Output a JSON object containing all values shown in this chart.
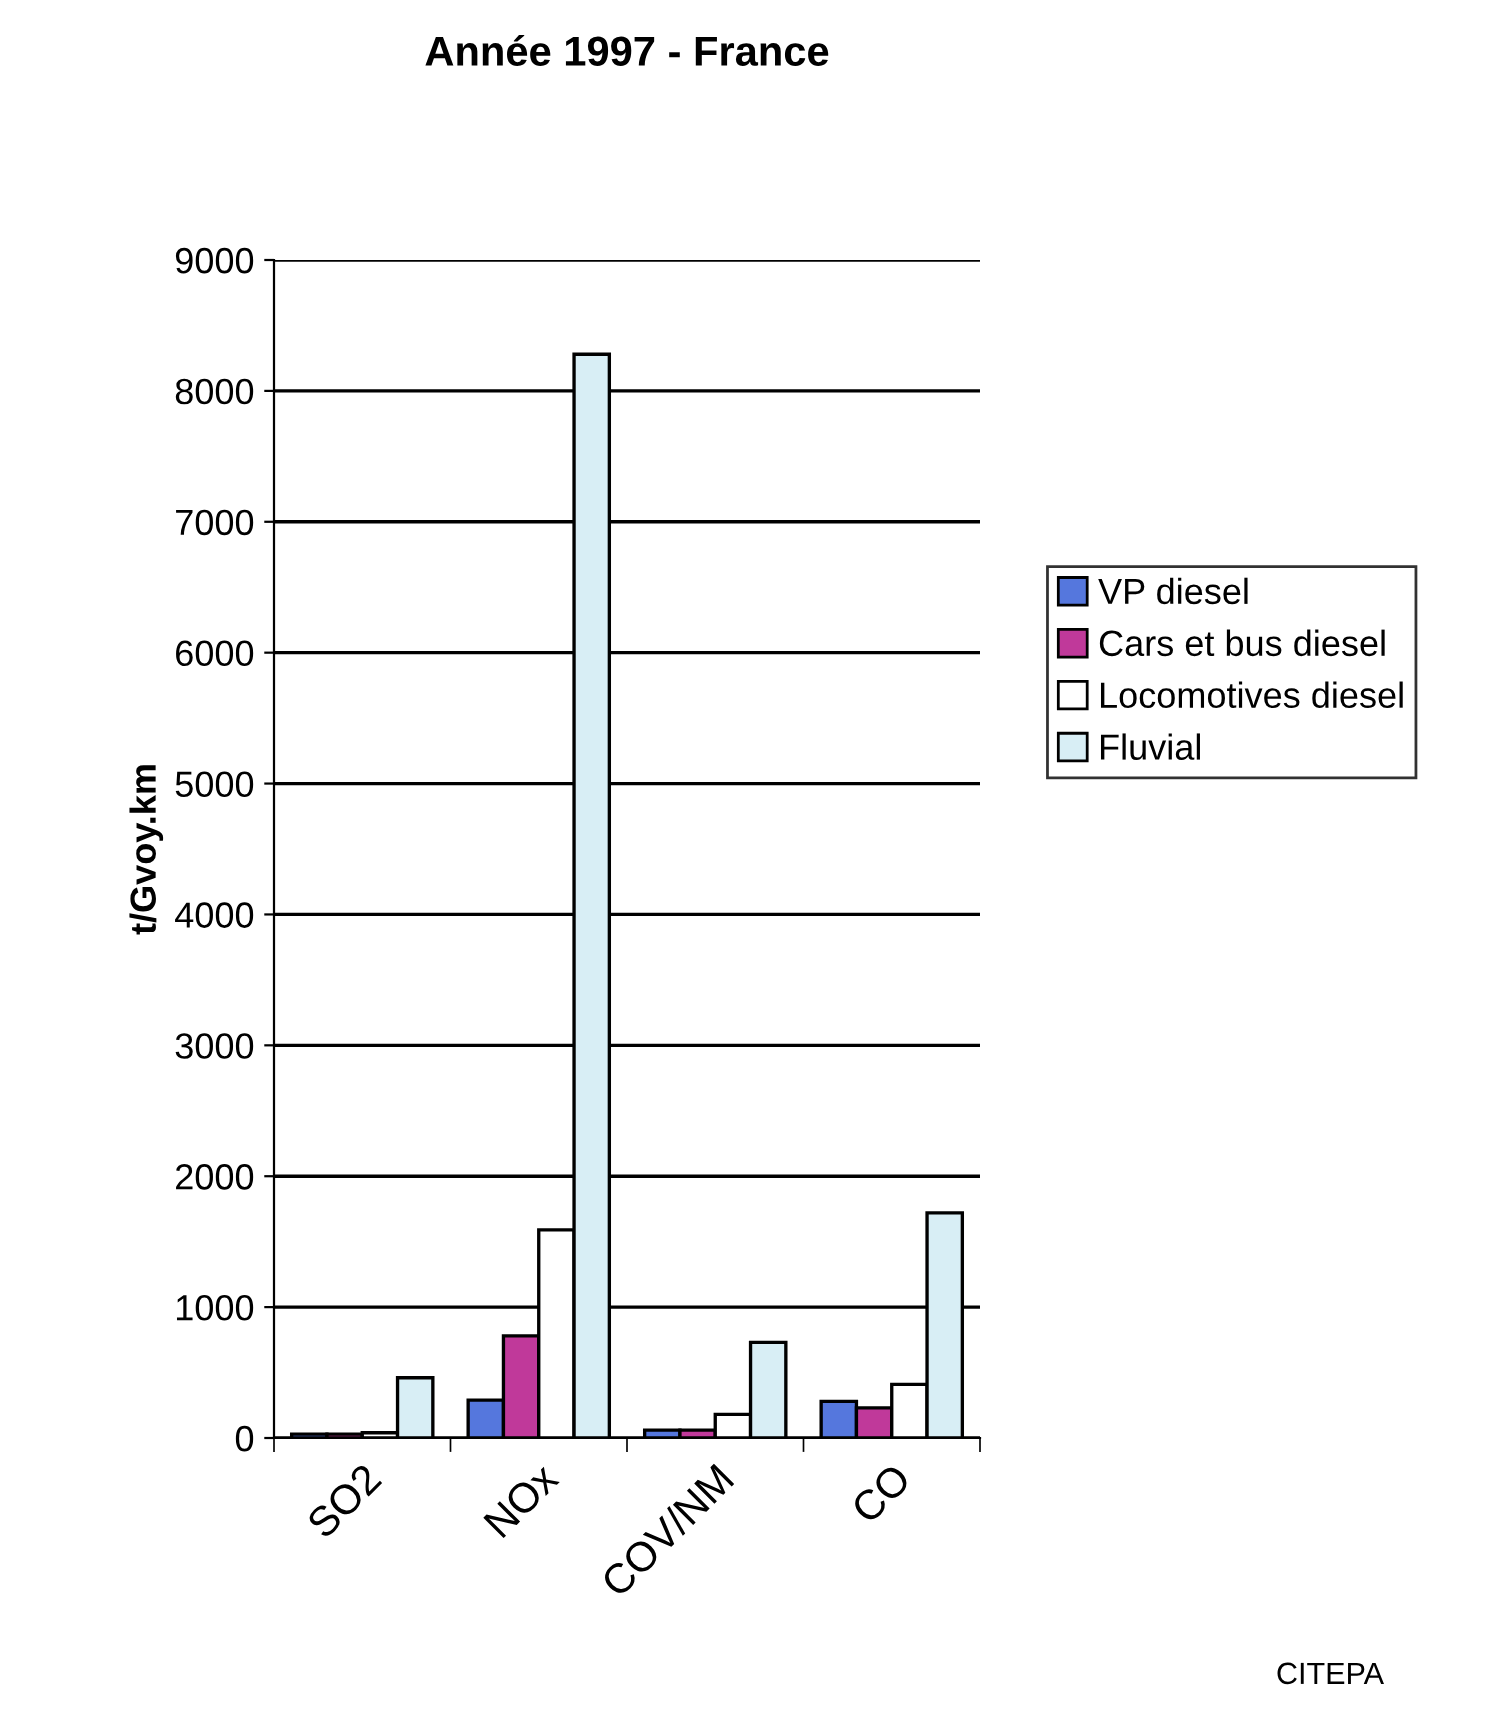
{
  "chart_data": {
    "type": "bar",
    "title": "Année 1997 - France",
    "ylabel": "t/Gvoy.km",
    "categories": [
      "SO2",
      "NOx",
      "COV/NM",
      "CO"
    ],
    "series": [
      {
        "name": "VP diesel",
        "color": "#5577dd",
        "values": [
          30,
          290,
          60,
          280
        ]
      },
      {
        "name": "Cars et bus diesel",
        "color": "#c0399a",
        "values": [
          30,
          780,
          60,
          230
        ]
      },
      {
        "name": "Locomotives diesel",
        "color": "#ffffff",
        "values": [
          40,
          1590,
          180,
          410
        ]
      },
      {
        "name": "Fluvial",
        "color": "#d8eef5",
        "values": [
          460,
          8280,
          730,
          1720
        ]
      }
    ],
    "ylim": [
      0,
      9000
    ],
    "yticks": [
      0,
      1000,
      2000,
      3000,
      4000,
      5000,
      6000,
      7000,
      8000,
      9000
    ],
    "grid": "y",
    "legend": "right",
    "annotations": [
      "CITEPA"
    ]
  }
}
